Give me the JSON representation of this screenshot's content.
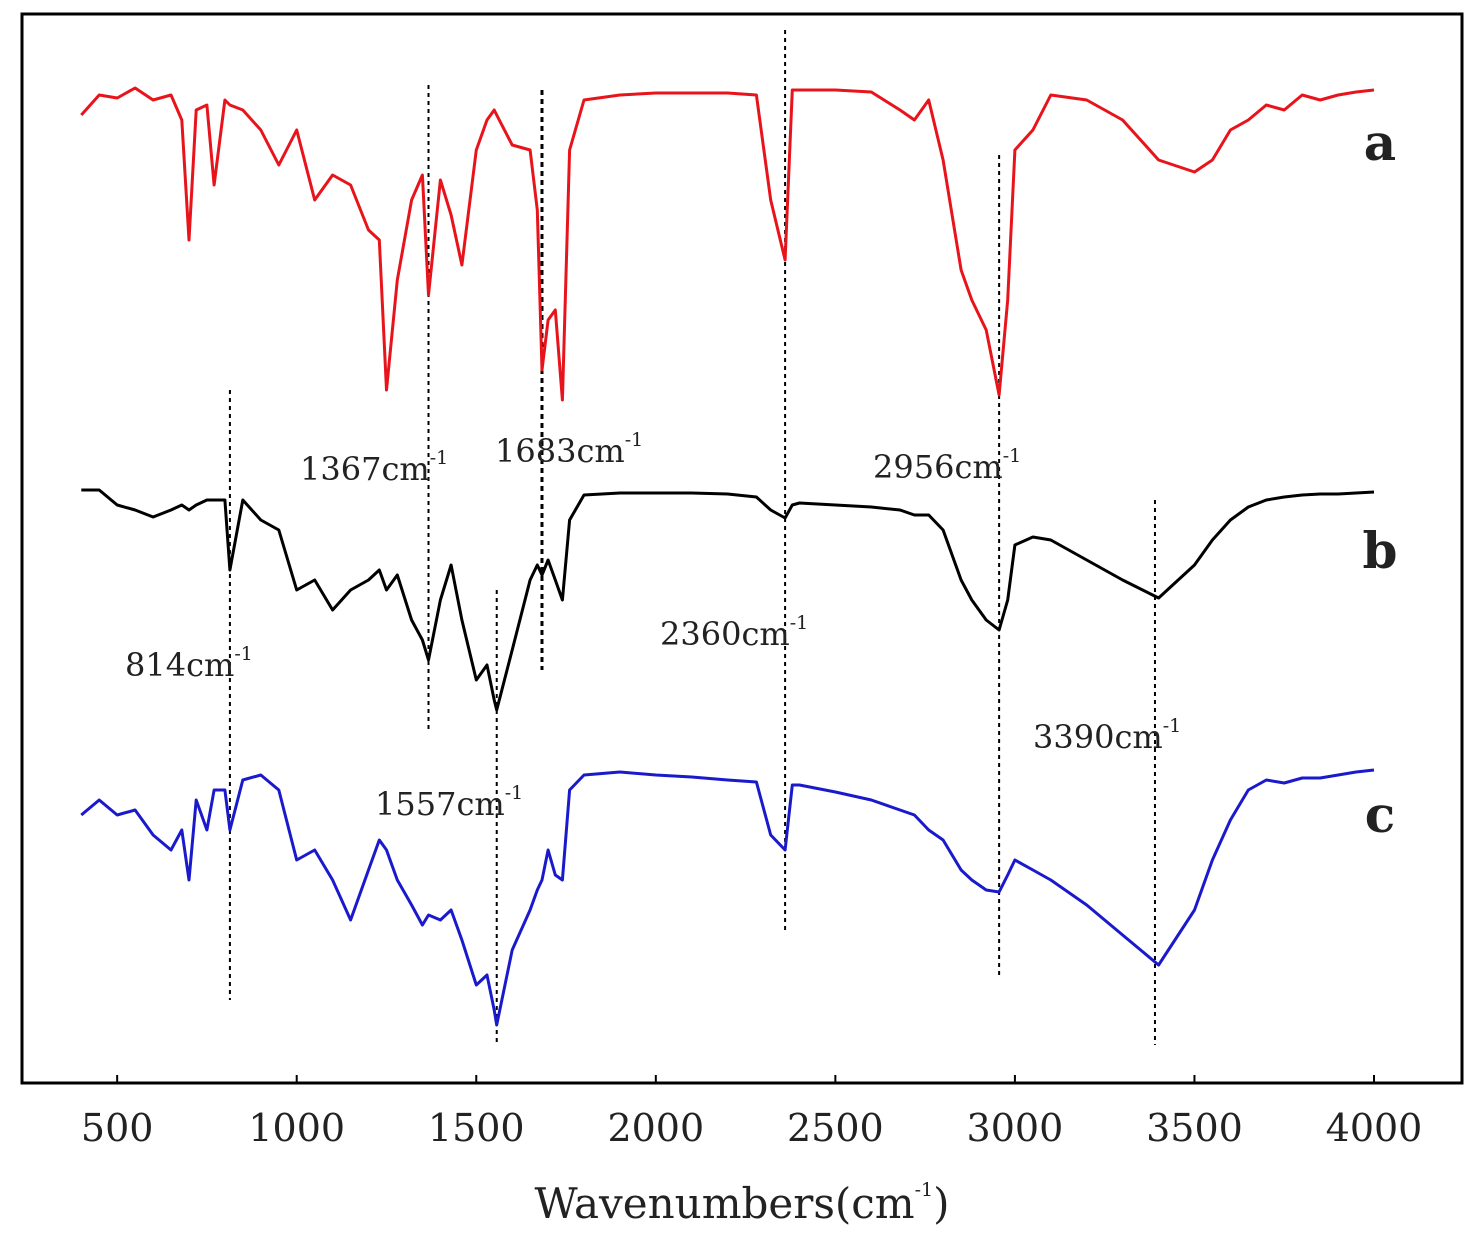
{
  "chart_data": {
    "type": "line",
    "xlabel": "Wavenumbers(cm",
    "xlabel_sup": "-1",
    "xlabel_end": ")",
    "xlim": [
      235,
      4245
    ],
    "xticks": [
      500,
      1000,
      1500,
      2000,
      2500,
      3000,
      3500,
      4000
    ],
    "ylim": [
      0,
      1069
    ],
    "x": [
      400,
      450,
      500,
      550,
      600,
      650,
      680,
      700,
      720,
      750,
      770,
      800,
      814,
      850,
      900,
      950,
      1000,
      1050,
      1100,
      1150,
      1200,
      1230,
      1250,
      1280,
      1320,
      1350,
      1367,
      1400,
      1430,
      1460,
      1500,
      1530,
      1550,
      1557,
      1600,
      1650,
      1670,
      1683,
      1700,
      1720,
      1740,
      1760,
      1800,
      1900,
      2000,
      2100,
      2200,
      2280,
      2320,
      2360,
      2380,
      2400,
      2500,
      2600,
      2680,
      2720,
      2760,
      2800,
      2850,
      2880,
      2920,
      2956,
      2980,
      3000,
      3050,
      3100,
      3200,
      3300,
      3400,
      3500,
      3550,
      3600,
      3650,
      3700,
      3750,
      3800,
      3850,
      3900,
      3950,
      4000
    ],
    "series": [
      {
        "name": "a",
        "color": "#e8141b",
        "values": [
          968,
          988,
          985,
          995,
          983,
          988,
          963,
          843,
          973,
          978,
          898,
          983,
          978,
          973,
          953,
          918,
          953,
          883,
          908,
          898,
          853,
          843,
          693,
          803,
          883,
          908,
          788,
          903,
          868,
          818,
          933,
          963,
          973,
          968,
          938,
          933,
          873,
          713,
          763,
          773,
          683,
          933,
          983,
          988,
          990,
          990,
          990,
          988,
          883,
          823,
          993,
          993,
          993,
          991,
          973,
          963,
          983,
          923,
          813,
          783,
          753,
          688,
          783,
          933,
          953,
          988,
          983,
          963,
          923,
          911,
          923,
          953,
          963,
          978,
          973,
          988,
          983,
          988,
          991,
          993
        ]
      },
      {
        "name": "b",
        "color": "#000000",
        "values": [
          593,
          593,
          578,
          573,
          566,
          573,
          578,
          573,
          578,
          583,
          583,
          583,
          513,
          583,
          563,
          553,
          493,
          503,
          473,
          493,
          503,
          513,
          493,
          508,
          463,
          443,
          423,
          483,
          518,
          463,
          403,
          418,
          383,
          373,
          433,
          503,
          518,
          508,
          523,
          503,
          483,
          563,
          588,
          590,
          590,
          590,
          589,
          586,
          573,
          565,
          578,
          580,
          578,
          576,
          573,
          568,
          568,
          553,
          503,
          483,
          463,
          453,
          483,
          538,
          546,
          543,
          523,
          503,
          485,
          518,
          543,
          563,
          576,
          583,
          586,
          588,
          589,
          589,
          590,
          591
        ]
      },
      {
        "name": "c",
        "color": "#1a1acc",
        "values": [
          268,
          283,
          268,
          273,
          248,
          233,
          253,
          203,
          283,
          253,
          293,
          293,
          253,
          303,
          308,
          293,
          223,
          233,
          203,
          163,
          213,
          243,
          233,
          203,
          178,
          158,
          168,
          163,
          173,
          143,
          98,
          108,
          73,
          58,
          133,
          173,
          193,
          203,
          233,
          208,
          203,
          293,
          308,
          311,
          308,
          306,
          303,
          301,
          248,
          233,
          298,
          298,
          291,
          283,
          273,
          268,
          253,
          243,
          213,
          203,
          193,
          191,
          208,
          223,
          213,
          203,
          178,
          148,
          118,
          173,
          223,
          263,
          293,
          303,
          300,
          305,
          305,
          308,
          311,
          313
        ]
      }
    ],
    "peaks": [
      {
        "label": "814cm",
        "sup": "-1",
        "x": 814
      },
      {
        "label": "1367cm",
        "sup": "-1",
        "x": 1367
      },
      {
        "label": "1557cm",
        "sup": "-1",
        "x": 1557
      },
      {
        "label": "1683cm",
        "sup": "-1",
        "x": 1683
      },
      {
        "label": "2360cm",
        "sup": "-1",
        "x": 2360
      },
      {
        "label": "2956cm",
        "sup": "-1",
        "x": 2956
      },
      {
        "label": "3390cm",
        "sup": "-1",
        "x": 3390
      }
    ]
  }
}
